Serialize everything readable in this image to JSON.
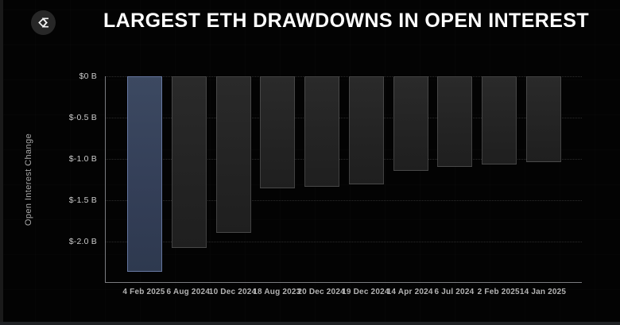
{
  "header": {
    "title": "LARGEST ETH DRAWDOWNS IN OPEN INTEREST",
    "logo_icon": "sigma-diamond-icon"
  },
  "chart_data": {
    "type": "bar",
    "title": "LARGEST ETH DRAWDOWNS IN OPEN INTEREST",
    "categories": [
      "4 Feb 2025",
      "6 Aug 2024",
      "10 Dec 2024",
      "18 Aug 2023",
      "20 Dec 2024",
      "19 Dec 2024",
      "14 Apr 2024",
      "6 Jul 2024",
      "2 Feb 2025",
      "14 Jan 2025"
    ],
    "values": [
      -2.37,
      -2.08,
      -1.89,
      -1.36,
      -1.34,
      -1.31,
      -1.14,
      -1.1,
      -1.07,
      -1.04
    ],
    "unit": "billions USD",
    "xlabel": "",
    "ylabel": "Open Interest Change",
    "ylim": [
      -2.5,
      0
    ],
    "yticks": [
      "$0 B",
      "$-0.5 B",
      "$-1.0 B",
      "$-1.5 B",
      "$-2.0 B"
    ],
    "ytick_values": [
      0,
      -0.5,
      -1.0,
      -1.5,
      -2.0
    ],
    "grid": "horizontal dotted",
    "legend": "none",
    "highlight_index": 0,
    "colors": {
      "background": "#030303",
      "highlight_bar": "#343f58",
      "highlight_bar_border": "#8094c6",
      "bar": "#232323",
      "bar_border": "#3d3d3d",
      "axis": "#7b7c80",
      "tick_text": "#cbcbcb",
      "title_text": "#ffffff"
    }
  }
}
